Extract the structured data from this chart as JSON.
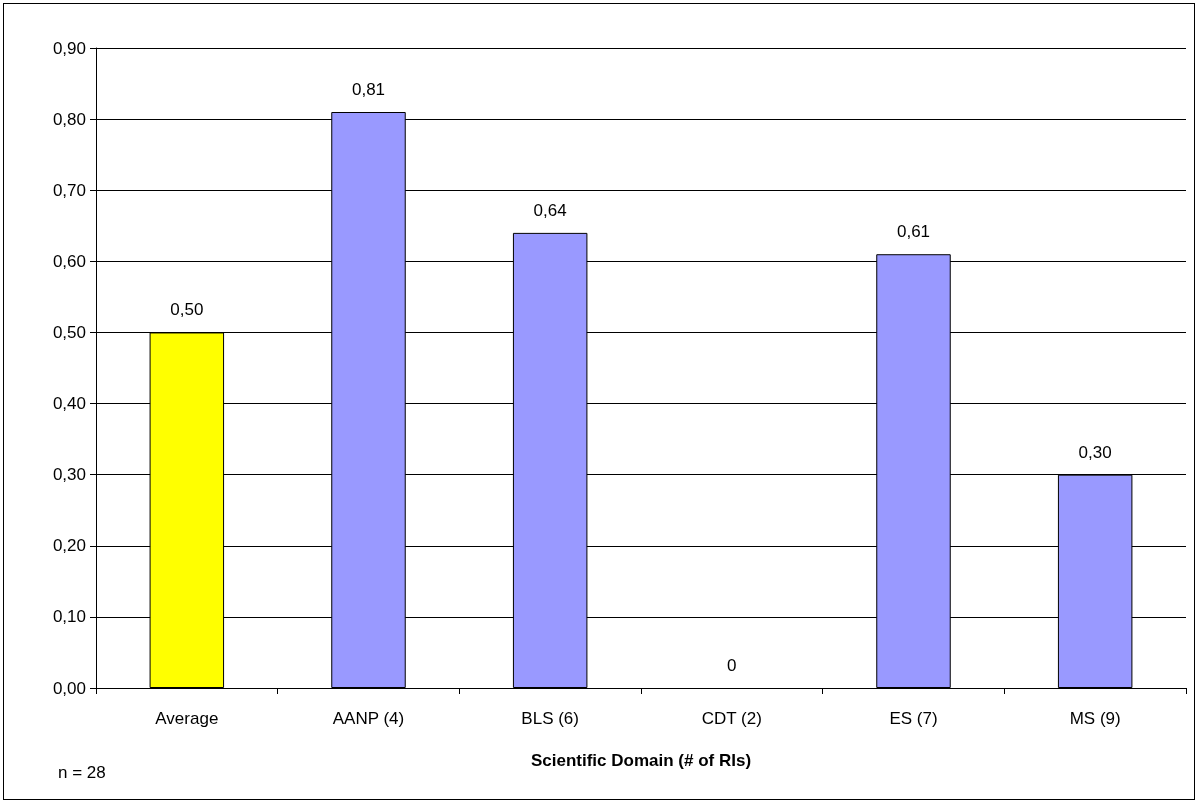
{
  "chart_data": {
    "type": "bar",
    "xlabel": "Scientific Domain (# of RIs)",
    "categories": [
      "Average",
      "AANP (4)",
      "BLS (6)",
      "CDT (2)",
      "ES (7)",
      "MS (9)"
    ],
    "values": [
      0.5,
      0.81,
      0.64,
      0,
      0.61,
      0.3
    ],
    "colors": [
      "#ffff00",
      "#9999ff",
      "#9999ff",
      "#9999ff",
      "#9999ff",
      "#9999ff"
    ],
    "value_labels": [
      "0,50",
      "0,81",
      "0,64",
      "0",
      "0,61",
      "0,30"
    ],
    "ylim": [
      0,
      0.9
    ],
    "yticks": [
      {
        "value": 0,
        "label": "0,00"
      },
      {
        "value": 0.1,
        "label": "0,10"
      },
      {
        "value": 0.2,
        "label": "0,20"
      },
      {
        "value": 0.3,
        "label": "0,30"
      },
      {
        "value": 0.4,
        "label": "0,40"
      },
      {
        "value": 0.5,
        "label": "0,50"
      },
      {
        "value": 0.6,
        "label": "0,60"
      },
      {
        "value": 0.7,
        "label": "0,70"
      },
      {
        "value": 0.8,
        "label": "0,80"
      },
      {
        "value": 0.9,
        "label": "0,90"
      }
    ],
    "grid": "y",
    "annotations": [
      "n = 28"
    ]
  }
}
